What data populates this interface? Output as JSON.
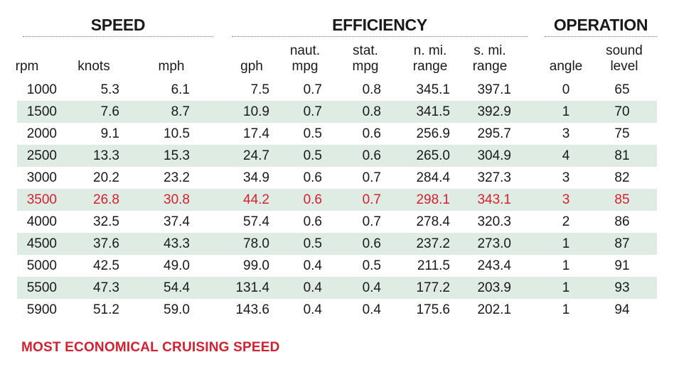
{
  "chart_data": {
    "type": "table",
    "groups": [
      "SPEED",
      "EFFICIENCY",
      "OPERATION"
    ],
    "columns": [
      [
        "rpm"
      ],
      [
        "knots"
      ],
      [
        "mph"
      ],
      [
        "gph"
      ],
      [
        "naut.",
        "mpg"
      ],
      [
        "stat.",
        "mpg"
      ],
      [
        "n. mi.",
        "range"
      ],
      [
        "s. mi.",
        "range"
      ],
      [
        "angle"
      ],
      [
        "sound",
        "level"
      ]
    ],
    "rows": [
      [
        "1000",
        "5.3",
        "6.1",
        "7.5",
        "0.7",
        "0.8",
        "345.1",
        "397.1",
        "0",
        "65"
      ],
      [
        "1500",
        "7.6",
        "8.7",
        "10.9",
        "0.7",
        "0.8",
        "341.5",
        "392.9",
        "1",
        "70"
      ],
      [
        "2000",
        "9.1",
        "10.5",
        "17.4",
        "0.5",
        "0.6",
        "256.9",
        "295.7",
        "3",
        "75"
      ],
      [
        "2500",
        "13.3",
        "15.3",
        "24.7",
        "0.5",
        "0.6",
        "265.0",
        "304.9",
        "4",
        "81"
      ],
      [
        "3000",
        "20.2",
        "23.2",
        "34.9",
        "0.6",
        "0.7",
        "284.4",
        "327.3",
        "3",
        "82"
      ],
      [
        "3500",
        "26.8",
        "30.8",
        "44.2",
        "0.6",
        "0.7",
        "298.1",
        "343.1",
        "3",
        "85"
      ],
      [
        "4000",
        "32.5",
        "37.4",
        "57.4",
        "0.6",
        "0.7",
        "278.4",
        "320.3",
        "2",
        "86"
      ],
      [
        "4500",
        "37.6",
        "43.3",
        "78.0",
        "0.5",
        "0.6",
        "237.2",
        "273.0",
        "1",
        "87"
      ],
      [
        "5000",
        "42.5",
        "49.0",
        "99.0",
        "0.4",
        "0.5",
        "211.5",
        "243.4",
        "1",
        "91"
      ],
      [
        "5500",
        "47.3",
        "54.4",
        "131.4",
        "0.4",
        "0.4",
        "177.2",
        "203.9",
        "1",
        "93"
      ],
      [
        "5900",
        "51.2",
        "59.0",
        "143.6",
        "0.4",
        "0.4",
        "175.6",
        "202.1",
        "1",
        "94"
      ]
    ],
    "highlight_row": "3500",
    "highlight_color": "#d42030",
    "stripe_color": "#dfece4",
    "footnote": "MOST ECONOMICAL CRUISING SPEED"
  }
}
